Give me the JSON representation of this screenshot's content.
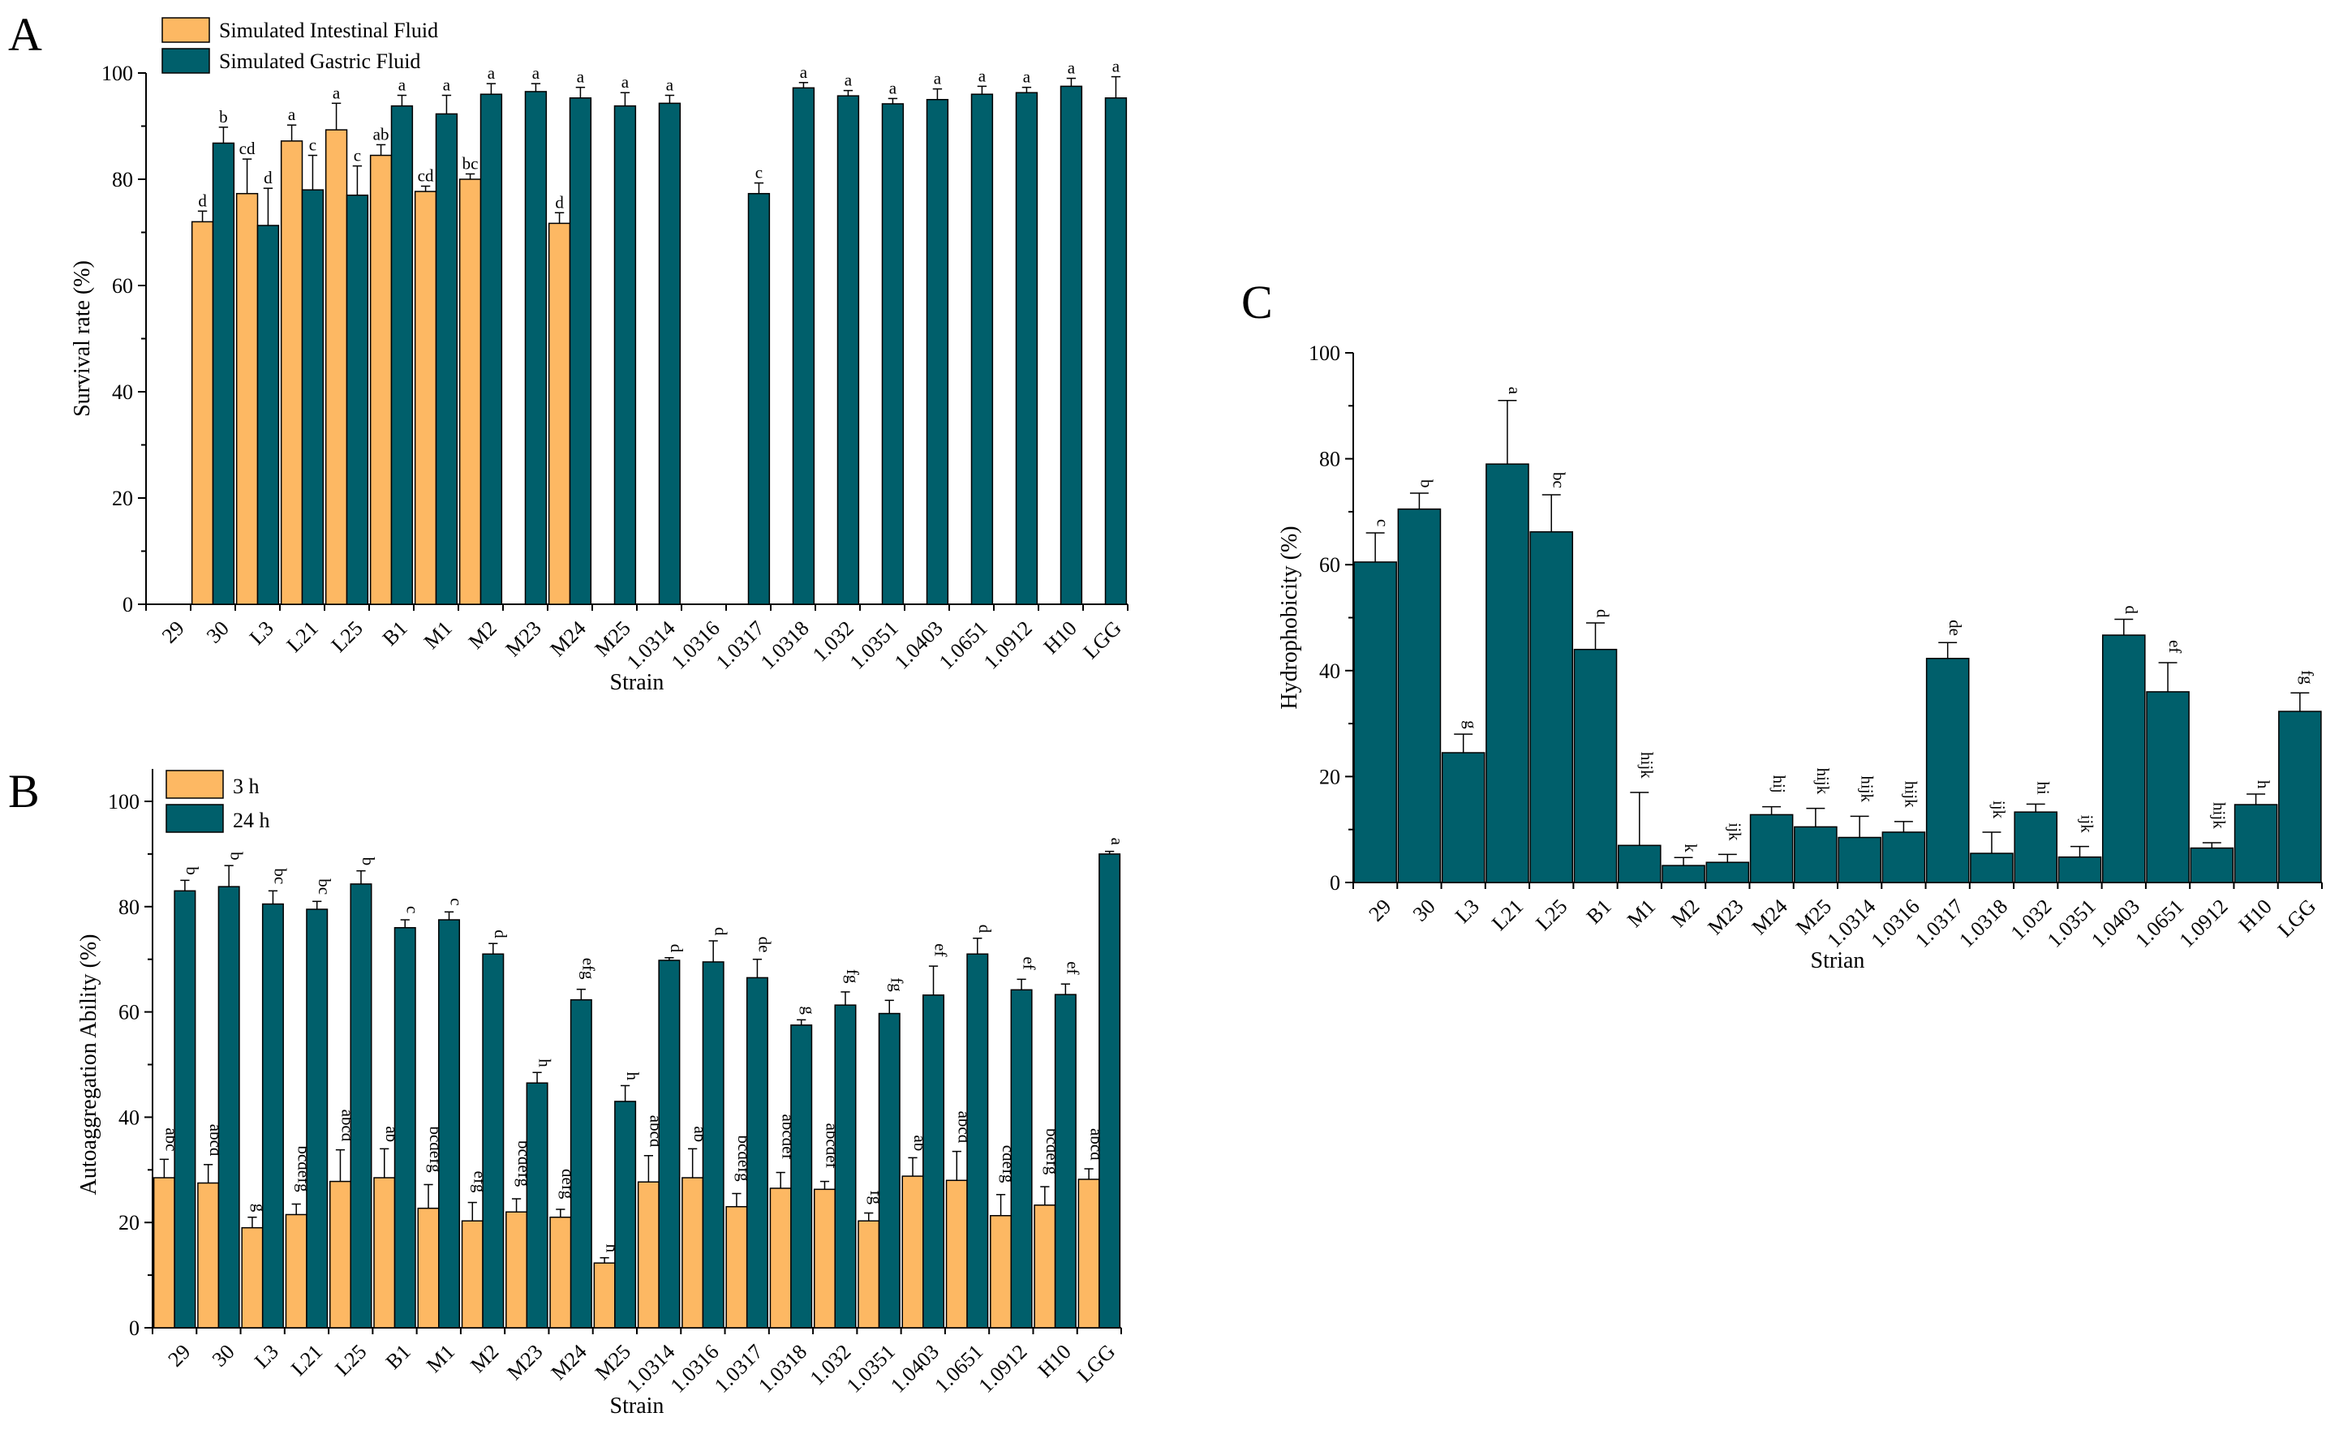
{
  "colors": {
    "orange": "#FDB863",
    "teal": "#005F6B",
    "axis": "#000000"
  },
  "chart_data": [
    {
      "panel": "A",
      "type": "bar",
      "xlabel": "Strain",
      "ylabel": "Survival rate (%)",
      "ylim": [
        0,
        100
      ],
      "yticks": [
        0,
        20,
        40,
        60,
        80,
        100
      ],
      "grid": false,
      "legend_position": "top-left",
      "categories": [
        "29",
        "30",
        "L3",
        "L21",
        "L25",
        "B1",
        "M1",
        "M2",
        "M23",
        "M24",
        "M25",
        "1.0314",
        "1.0316",
        "1.0317",
        "1.0318",
        "1.032",
        "1.0351",
        "1.0403",
        "1.0651",
        "1.0912",
        "H10",
        "LGG"
      ],
      "series": [
        {
          "name": "Simulated Intestinal Fluid",
          "color": "orange",
          "values": [
            null,
            72.0,
            77.3,
            87.2,
            89.3,
            84.5,
            77.7,
            80.0,
            null,
            71.7,
            null,
            null,
            null,
            null,
            null,
            null,
            null,
            null,
            null,
            null,
            null,
            null
          ],
          "errors": [
            0,
            2.0,
            6.5,
            3.0,
            5.0,
            2.0,
            1.0,
            1.0,
            0,
            2.0,
            0,
            0,
            0,
            0,
            0,
            0,
            0,
            0,
            0,
            0,
            0,
            0
          ],
          "labels": [
            "",
            "d",
            "cd",
            "a",
            "a",
            "ab",
            "cd",
            "bc",
            "",
            "d",
            "",
            "",
            "",
            "",
            "",
            "",
            "",
            "",
            "",
            "",
            "",
            ""
          ]
        },
        {
          "name": "Simulated Gastric Fluid",
          "color": "teal",
          "values": [
            null,
            86.8,
            71.3,
            78.0,
            77.0,
            93.8,
            92.3,
            96.0,
            96.5,
            95.3,
            93.8,
            94.3,
            null,
            77.3,
            97.2,
            95.7,
            94.2,
            95.0,
            96.0,
            96.3,
            97.5,
            95.3
          ],
          "errors": [
            0,
            3.0,
            7.0,
            6.5,
            5.5,
            2.0,
            3.5,
            2.0,
            1.5,
            2.0,
            2.5,
            1.5,
            0,
            2.0,
            1.0,
            1.0,
            1.0,
            2.0,
            1.5,
            1.0,
            1.5,
            4.0
          ],
          "labels": [
            "",
            "b",
            "d",
            "c",
            "c",
            "a",
            "a",
            "a",
            "a",
            "a",
            "a",
            "a",
            "",
            "c",
            "a",
            "a",
            "a",
            "a",
            "a",
            "a",
            "a",
            "a"
          ]
        }
      ]
    },
    {
      "panel": "B",
      "type": "bar",
      "xlabel": "Strain",
      "ylabel": "Autoaggregation Ability (%)",
      "ylim": [
        0,
        100
      ],
      "yticks": [
        0,
        20,
        40,
        60,
        80,
        100
      ],
      "grid": false,
      "legend_position": "top-left",
      "categories": [
        "29",
        "30",
        "L3",
        "L21",
        "L25",
        "B1",
        "M1",
        "M2",
        "M23",
        "M24",
        "M25",
        "1.0314",
        "1.0316",
        "1.0317",
        "1.0318",
        "1.032",
        "1.0351",
        "1.0403",
        "1.0651",
        "1.0912",
        "H10",
        "LGG"
      ],
      "series": [
        {
          "name": "3 h",
          "color": "orange",
          "values": [
            28.5,
            27.5,
            19.0,
            21.5,
            27.8,
            28.5,
            22.7,
            20.3,
            22.0,
            21.0,
            12.3,
            27.7,
            28.5,
            23.0,
            26.5,
            26.3,
            20.3,
            28.8,
            28.0,
            21.3,
            23.3,
            28.2
          ],
          "errors": [
            3.5,
            3.5,
            2.0,
            2.0,
            6.0,
            5.5,
            4.5,
            3.5,
            2.5,
            1.5,
            1.0,
            5.0,
            5.5,
            2.5,
            3.0,
            1.5,
            1.5,
            3.5,
            5.5,
            4.0,
            3.5,
            2.0
          ],
          "labels": [
            "abc",
            "abcd",
            "g",
            "bcdefg",
            "abcd",
            "ab",
            "bcdefg",
            "efg",
            "bcdefg",
            "defg",
            "h",
            "abcd",
            "ab",
            "bcdefg",
            "abcdef",
            "abcdef",
            "fg",
            "ab",
            "abcd",
            "cdefg",
            "bcdefg",
            "abcd"
          ]
        },
        {
          "name": "24 h",
          "color": "teal",
          "values": [
            83.0,
            83.8,
            80.5,
            79.5,
            84.3,
            76.0,
            77.5,
            71.0,
            46.5,
            62.3,
            43.0,
            69.8,
            69.5,
            66.5,
            57.5,
            61.3,
            59.7,
            63.2,
            71.0,
            64.2,
            63.3,
            90.0
          ],
          "errors": [
            2.0,
            4.0,
            2.5,
            1.5,
            2.5,
            1.5,
            1.5,
            2.0,
            2.0,
            2.0,
            3.0,
            0.5,
            4.0,
            3.5,
            1.0,
            2.5,
            2.5,
            5.5,
            3.0,
            2.0,
            2.0,
            0.5
          ],
          "labels": [
            "b",
            "b",
            "bc",
            "bc",
            "b",
            "c",
            "c",
            "d",
            "h",
            "efg",
            "h",
            "d",
            "d",
            "de",
            "g",
            "fg",
            "fg",
            "ef",
            "d",
            "ef",
            "ef",
            "a"
          ]
        }
      ]
    },
    {
      "panel": "C",
      "type": "bar",
      "xlabel": "Strian",
      "ylabel": "Hydrophobicity (%)",
      "ylim": [
        0,
        100
      ],
      "yticks": [
        0,
        20,
        40,
        60,
        80,
        100
      ],
      "grid": false,
      "categories": [
        "29",
        "30",
        "L3",
        "L21",
        "L25",
        "B1",
        "M1",
        "M2",
        "M23",
        "M24",
        "M25",
        "1.0314",
        "1.0316",
        "1.0317",
        "1.0318",
        "1.032",
        "1.0351",
        "1.0403",
        "1.0651",
        "1.0912",
        "H10",
        "LGG"
      ],
      "series": [
        {
          "name": "Hydrophobicity",
          "color": "teal",
          "values": [
            60.5,
            70.5,
            24.5,
            79.0,
            66.2,
            44.0,
            7.0,
            3.2,
            3.8,
            12.8,
            10.5,
            8.5,
            9.5,
            42.3,
            5.5,
            13.3,
            4.8,
            46.7,
            36.0,
            6.5,
            14.7,
            32.3
          ],
          "errors": [
            5.5,
            3.0,
            3.5,
            12.0,
            7.0,
            5.0,
            10.0,
            1.5,
            1.5,
            1.5,
            3.5,
            4.0,
            2.0,
            3.0,
            4.0,
            1.5,
            2.0,
            3.0,
            5.5,
            1.0,
            2.0,
            3.5
          ],
          "labels": [
            "c",
            "b",
            "g",
            "a",
            "bc",
            "d",
            "hijk",
            "k",
            "ijk",
            "hij",
            "hijk",
            "hijk",
            "hijk",
            "de",
            "ijk",
            "hi",
            "ijk",
            "d",
            "ef",
            "hijk",
            "h",
            "fg"
          ]
        }
      ]
    }
  ]
}
